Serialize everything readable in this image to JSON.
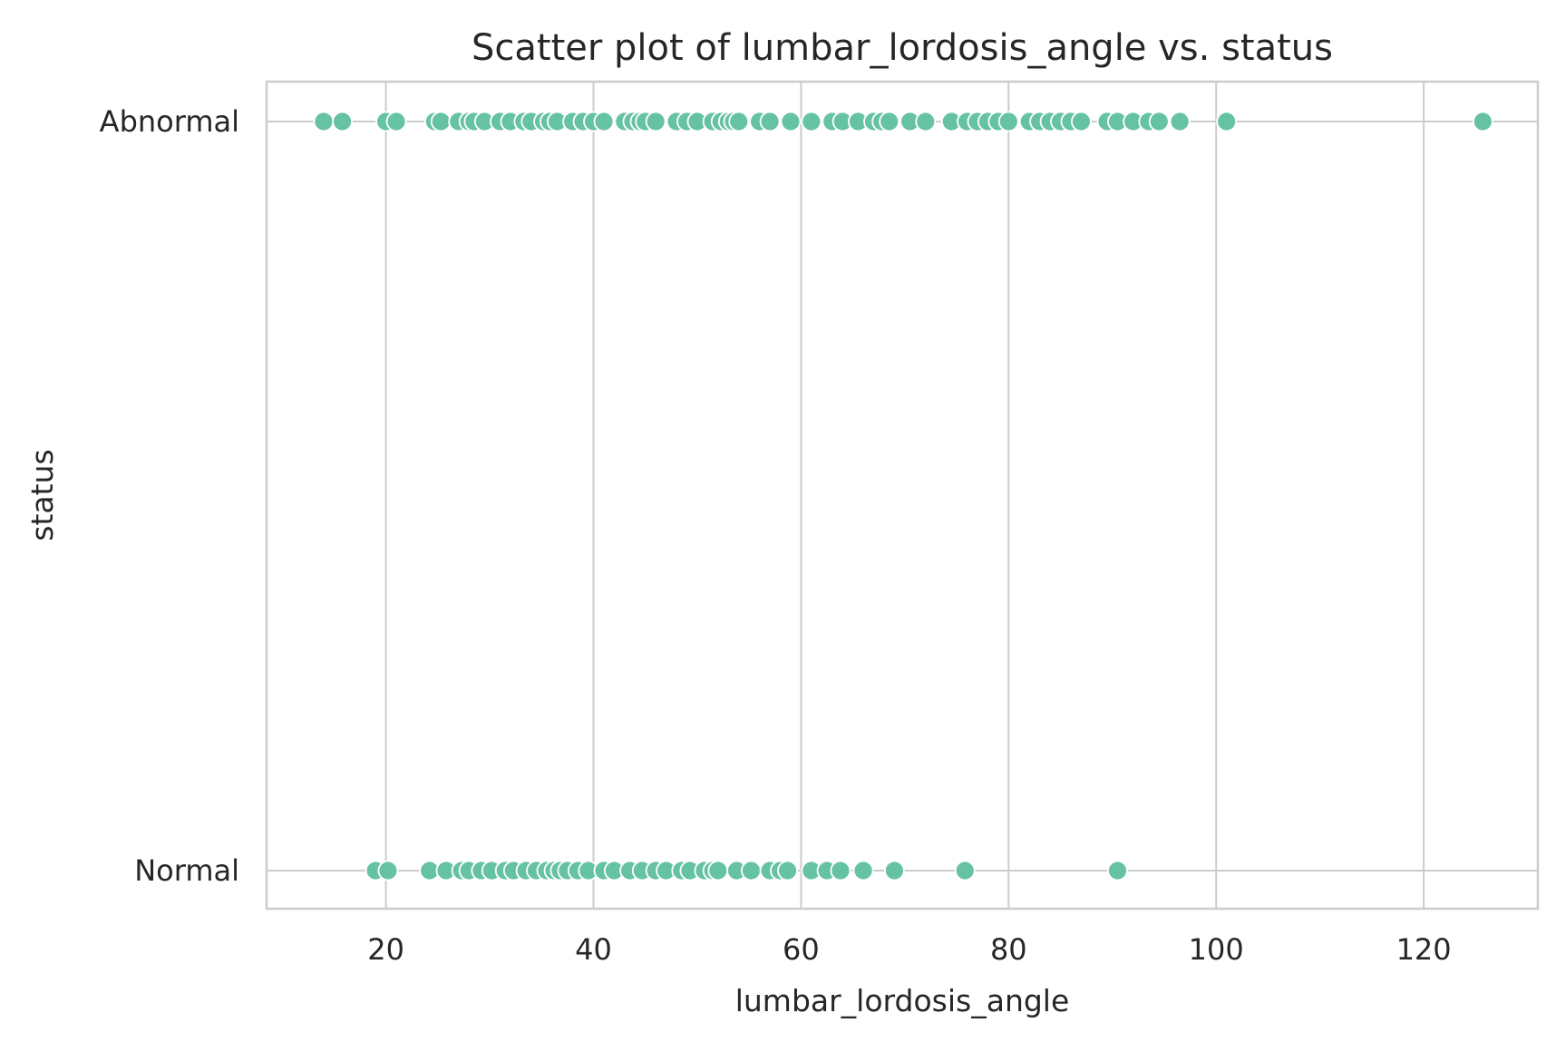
{
  "chart_data": {
    "type": "scatter",
    "title": "Scatter plot of lumbar_lordosis_angle vs. status",
    "xlabel": "lumbar_lordosis_angle",
    "ylabel": "status",
    "xlim": [
      8.5,
      131
    ],
    "x_ticks": [
      20,
      40,
      60,
      80,
      100,
      120
    ],
    "categories": [
      "Abnormal",
      "Normal"
    ],
    "grid": true,
    "color": "#66c2a5",
    "series": [
      {
        "category": "Abnormal",
        "x": [
          14.0,
          15.8,
          20.0,
          21.0,
          24.7,
          25.3,
          27.0,
          28.0,
          28.5,
          29.5,
          31.0,
          32.0,
          33.3,
          34.0,
          35.2,
          35.8,
          36.5,
          38.0,
          39.0,
          40.0,
          41.0,
          43.0,
          43.8,
          44.5,
          45.0,
          46.0,
          48.0,
          49.0,
          50.0,
          51.5,
          52.3,
          53.0,
          53.5,
          54.0,
          56.0,
          57.0,
          59.0,
          61.0,
          63.0,
          64.0,
          65.5,
          67.0,
          67.8,
          68.5,
          70.5,
          72.0,
          74.5,
          76.0,
          77.0,
          78.0,
          79.0,
          80.0,
          82.0,
          83.0,
          84.0,
          85.0,
          86.0,
          87.0,
          89.5,
          90.5,
          92.0,
          93.5,
          94.5,
          96.5,
          101.0,
          125.7
        ]
      },
      {
        "category": "Normal",
        "x": [
          19.0,
          20.2,
          24.2,
          25.8,
          27.3,
          28.0,
          29.2,
          30.2,
          31.5,
          32.3,
          33.5,
          34.5,
          35.5,
          36.2,
          36.8,
          37.5,
          38.5,
          39.5,
          41.0,
          42.0,
          43.5,
          44.7,
          46.0,
          47.0,
          48.5,
          49.3,
          50.7,
          51.5,
          52.0,
          53.8,
          55.2,
          57.0,
          58.0,
          58.7,
          61.0,
          62.5,
          63.8,
          66.0,
          69.0,
          75.8,
          90.5
        ]
      }
    ]
  }
}
